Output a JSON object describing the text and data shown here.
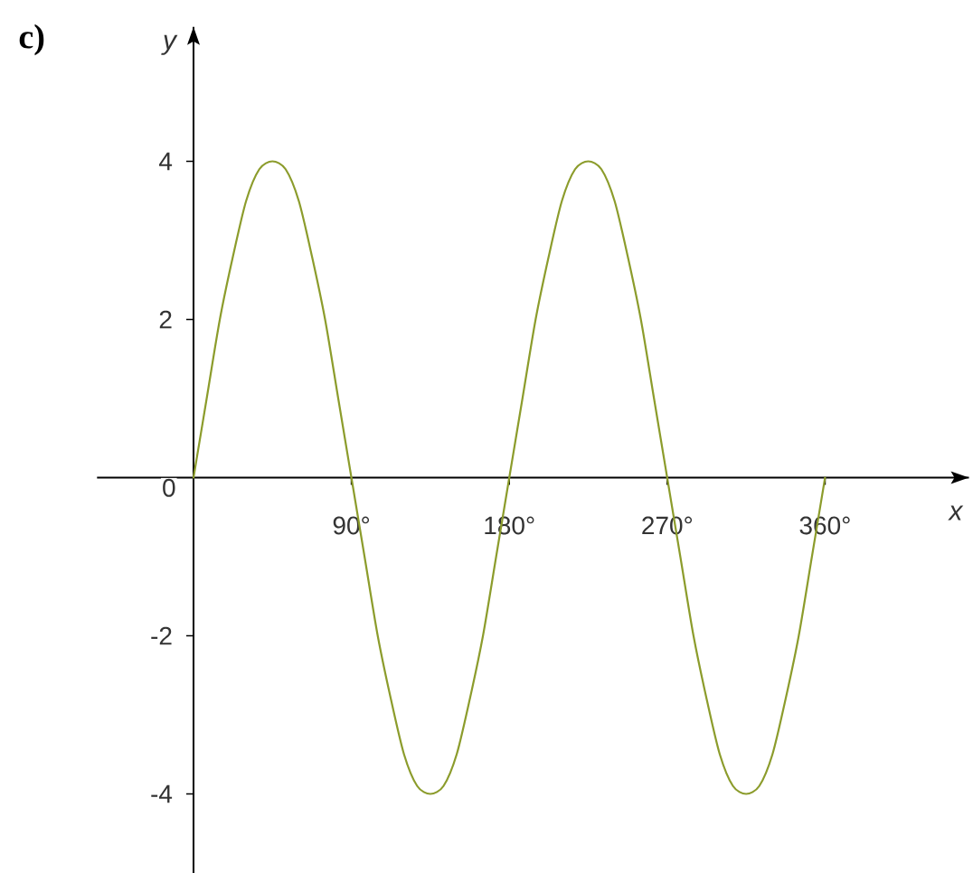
{
  "chart_data": {
    "type": "line",
    "title": "c)",
    "xlabel": "x",
    "ylabel": "y",
    "x": [
      0,
      7.5,
      15,
      22.5,
      30,
      37.5,
      45,
      52.5,
      60,
      67.5,
      75,
      82.5,
      90,
      97.5,
      105,
      112.5,
      120,
      127.5,
      135,
      142.5,
      150,
      157.5,
      165,
      172.5,
      180,
      187.5,
      195,
      202.5,
      210,
      217.5,
      225,
      232.5,
      240,
      247.5,
      255,
      262.5,
      270,
      277.5,
      285,
      292.5,
      300,
      307.5,
      315,
      322.5,
      330,
      337.5,
      345,
      352.5,
      360
    ],
    "values": [
      0,
      1.0,
      2.0,
      2.8,
      3.5,
      3.9,
      4,
      3.9,
      3.5,
      2.8,
      2.0,
      1.0,
      0,
      -1.0,
      -2.0,
      -2.8,
      -3.5,
      -3.9,
      -4,
      -3.9,
      -3.5,
      -2.8,
      -2.0,
      -1.0,
      0,
      1.0,
      2.0,
      2.8,
      3.5,
      3.9,
      4,
      3.9,
      3.5,
      2.8,
      2.0,
      1.0,
      0,
      -1.0,
      -2.0,
      -2.8,
      -3.5,
      -3.9,
      -4,
      -3.9,
      -3.5,
      -2.8,
      -2.0,
      -1.0,
      0
    ],
    "color": "#8c9c2c",
    "marker": "none",
    "line_style": "solid",
    "xlim": [
      -55,
      442
    ],
    "ylim": [
      -5,
      5.7
    ],
    "xticks": [
      {
        "value": 90,
        "label": "90°"
      },
      {
        "value": 180,
        "label": "180°"
      },
      {
        "value": 270,
        "label": "270°"
      },
      {
        "value": 360,
        "label": "360°"
      }
    ],
    "yticks": [
      -4,
      -2,
      0,
      2,
      4
    ]
  }
}
